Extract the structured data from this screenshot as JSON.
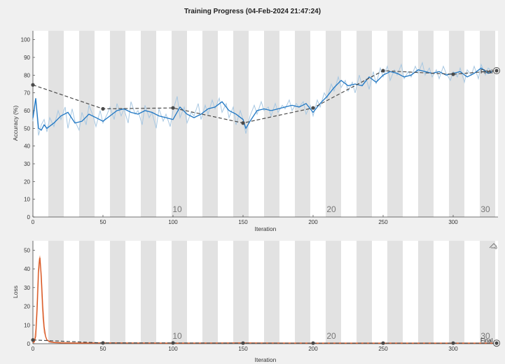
{
  "title": "Training Progress (04-Feb-2024 21:47:24)",
  "final_label": "Final",
  "export_icon": "export-icon",
  "colors": {
    "accuracy_smoothed": "#1f77c4",
    "accuracy_raw": "#a8c8e2",
    "loss_smoothed": "#d9531e",
    "loss_raw": "#efb89c",
    "validation": "#4a4a4a",
    "epoch_band": "#e2e2e2",
    "plot_bg": "#ffffff"
  },
  "chart_data": [
    {
      "type": "line",
      "ylabel": "Accuracy (%)",
      "xlabel": "Iteration",
      "xlim": [
        0,
        332
      ],
      "ylim": [
        0,
        105
      ],
      "x_ticks": [
        0,
        50,
        100,
        150,
        200,
        250,
        300
      ],
      "y_ticks": [
        0,
        10,
        20,
        30,
        40,
        50,
        60,
        70,
        80,
        90,
        100
      ],
      "epoch_labels": [
        {
          "label": "10",
          "iteration": 103
        },
        {
          "label": "20",
          "iteration": 213
        },
        {
          "label": "30",
          "iteration": 323
        }
      ],
      "epoch_band_width": 11,
      "series": [
        {
          "key": "smoothed",
          "x": [
            0,
            2,
            4,
            6,
            8,
            10,
            15,
            20,
            25,
            30,
            35,
            40,
            45,
            50,
            55,
            60,
            65,
            70,
            75,
            80,
            85,
            90,
            95,
            100,
            105,
            110,
            115,
            120,
            125,
            130,
            135,
            140,
            145,
            150,
            152,
            155,
            160,
            165,
            170,
            175,
            180,
            185,
            190,
            195,
            200,
            205,
            210,
            215,
            220,
            225,
            230,
            235,
            240,
            245,
            250,
            255,
            260,
            265,
            270,
            275,
            280,
            285,
            290,
            295,
            300,
            305,
            310,
            315,
            320,
            325,
            328
          ],
          "values": [
            56,
            67,
            50,
            49,
            52,
            50,
            53,
            57,
            59,
            53,
            54,
            58,
            56,
            54,
            57,
            60,
            61,
            59,
            58,
            60,
            59,
            57,
            56,
            55,
            62,
            58,
            56,
            58,
            61,
            62,
            65,
            60,
            58,
            55,
            50,
            54,
            60,
            61,
            60,
            61,
            62,
            63,
            62,
            64,
            59,
            64,
            68,
            73,
            77,
            74,
            75,
            74,
            79,
            76,
            80,
            82,
            81,
            79,
            80,
            83,
            82,
            81,
            82,
            80,
            81,
            82,
            79,
            81,
            84,
            81,
            82
          ]
        },
        {
          "key": "raw",
          "x": [
            0,
            2,
            4,
            6,
            8,
            10,
            12,
            15,
            18,
            20,
            23,
            25,
            28,
            30,
            33,
            35,
            38,
            40,
            43,
            45,
            48,
            50,
            53,
            55,
            58,
            60,
            63,
            65,
            68,
            70,
            73,
            75,
            78,
            80,
            83,
            85,
            88,
            90,
            93,
            95,
            98,
            100,
            103,
            105,
            108,
            110,
            113,
            115,
            118,
            120,
            123,
            125,
            128,
            130,
            133,
            135,
            138,
            140,
            143,
            145,
            148,
            150,
            152,
            155,
            158,
            160,
            163,
            165,
            168,
            170,
            173,
            175,
            178,
            180,
            183,
            185,
            188,
            190,
            193,
            195,
            198,
            200,
            203,
            205,
            208,
            210,
            213,
            215,
            218,
            220,
            223,
            225,
            228,
            230,
            233,
            235,
            238,
            240,
            243,
            245,
            248,
            250,
            253,
            255,
            258,
            260,
            263,
            265,
            268,
            270,
            273,
            275,
            278,
            280,
            283,
            285,
            288,
            290,
            293,
            295,
            298,
            300,
            303,
            305,
            308,
            310,
            313,
            315,
            318,
            320,
            323,
            325,
            328
          ],
          "values": [
            54,
            66,
            46,
            52,
            55,
            48,
            56,
            51,
            60,
            55,
            62,
            50,
            61,
            54,
            49,
            59,
            52,
            63,
            57,
            51,
            60,
            53,
            58,
            62,
            55,
            64,
            57,
            61,
            53,
            65,
            58,
            60,
            52,
            63,
            56,
            59,
            50,
            61,
            54,
            58,
            51,
            60,
            68,
            56,
            62,
            53,
            59,
            57,
            64,
            55,
            63,
            58,
            66,
            61,
            67,
            59,
            64,
            56,
            62,
            52,
            60,
            55,
            47,
            57,
            63,
            58,
            65,
            60,
            62,
            57,
            64,
            59,
            63,
            61,
            66,
            60,
            64,
            62,
            65,
            58,
            63,
            57,
            66,
            62,
            70,
            67,
            75,
            71,
            79,
            73,
            77,
            71,
            76,
            70,
            80,
            74,
            78,
            72,
            82,
            75,
            84,
            79,
            85,
            77,
            83,
            80,
            86,
            78,
            82,
            79,
            85,
            81,
            87,
            80,
            84,
            79,
            83,
            78,
            85,
            81,
            77,
            82,
            79,
            84,
            76,
            83,
            80,
            85,
            78,
            86,
            80,
            84,
            82
          ]
        },
        {
          "key": "validation",
          "x": [
            0,
            50,
            100,
            150,
            200,
            250,
            300,
            331
          ],
          "values": [
            74.5,
            61,
            61.5,
            53,
            61.5,
            82.5,
            80.5,
            82.5
          ]
        }
      ]
    },
    {
      "type": "line",
      "ylabel": "Loss",
      "xlabel": "Iteration",
      "xlim": [
        0,
        332
      ],
      "ylim": [
        0,
        55
      ],
      "x_ticks": [
        0,
        50,
        100,
        150,
        200,
        250,
        300
      ],
      "y_ticks": [
        0,
        10,
        20,
        30,
        40,
        50
      ],
      "epoch_labels": [
        {
          "label": "10",
          "iteration": 103
        },
        {
          "label": "20",
          "iteration": 213
        },
        {
          "label": "30",
          "iteration": 323
        }
      ],
      "epoch_band_width": 11,
      "series": [
        {
          "key": "smoothed",
          "x": [
            0,
            1,
            2,
            3,
            4,
            5,
            6,
            7,
            8,
            9,
            10,
            12,
            15,
            20,
            30,
            50,
            100,
            150,
            200,
            250,
            300,
            331
          ],
          "values": [
            0.5,
            1,
            4,
            18,
            38,
            46,
            36,
            20,
            9,
            4,
            2,
            1,
            0.6,
            0.4,
            0.3,
            0.4,
            0.3,
            0.4,
            0.3,
            0.3,
            0.3,
            0.3
          ]
        },
        {
          "key": "raw",
          "x": [
            0,
            1,
            2,
            3,
            4,
            5,
            6,
            7,
            8,
            10,
            15,
            30,
            60,
            100,
            150,
            200,
            250,
            300,
            331
          ],
          "values": [
            0.5,
            2,
            8,
            25,
            44,
            47,
            30,
            14,
            6,
            2,
            0.8,
            0.5,
            0.4,
            0.3,
            0.4,
            0.3,
            0.3,
            0.3,
            0.3
          ]
        },
        {
          "key": "validation",
          "x": [
            0,
            50,
            100,
            150,
            200,
            250,
            300,
            331
          ],
          "values": [
            2,
            0.4,
            0.4,
            0.3,
            0.3,
            0.3,
            0.3,
            0.3
          ]
        }
      ]
    }
  ]
}
